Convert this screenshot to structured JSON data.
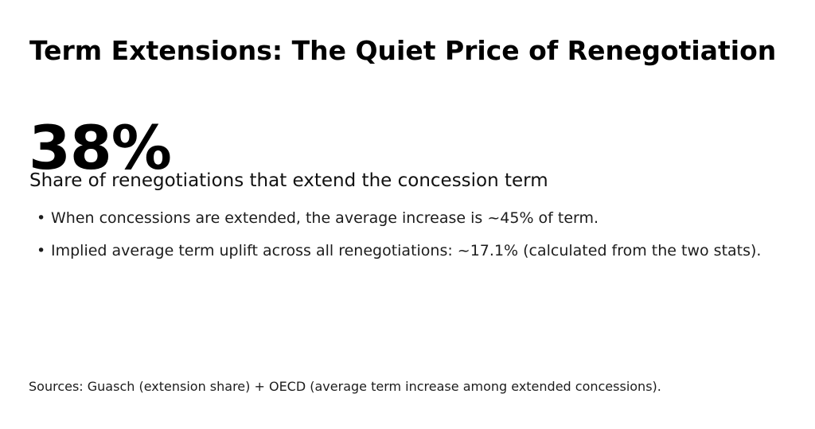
{
  "slide": {
    "title": "Term Extensions: The Quiet Price of Renegotiation",
    "stat": {
      "value": "38%",
      "label": "Share of renegotiations that extend the concession term"
    },
    "bullet_marker": "•",
    "bullets": [
      "When concessions are extended, the average increase is ~45% of term.",
      "Implied average term uplift across all renegotiations: ~17.1% (calculated from the two stats)."
    ],
    "source": "Sources: Guasch (extension share) + OECD (average term increase among extended concessions).",
    "colors": {
      "background": "#ffffff",
      "title": "#000000",
      "stat": "#000000",
      "body": "#1c1c1c"
    }
  }
}
